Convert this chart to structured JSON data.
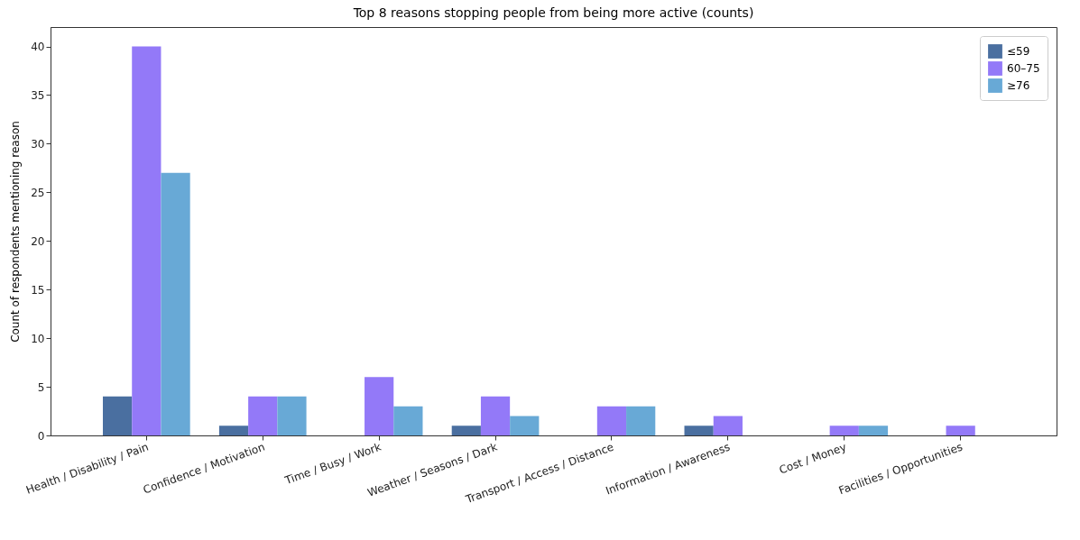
{
  "chart_data": {
    "type": "bar",
    "title": "Top 8 reasons stopping people from being more active (counts)",
    "ylabel": "Count of respondents mentioning reason",
    "categories": [
      "Health / Disability / Pain",
      "Confidence / Motivation",
      "Time / Busy / Work",
      "Weather / Seasons / Dark",
      "Transport / Access / Distance",
      "Information / Awareness",
      "Cost / Money",
      "Facilities / Opportunities"
    ],
    "series": [
      {
        "name": "≤59",
        "color": "#4a6fa0",
        "values": [
          4,
          1,
          0,
          1,
          0,
          1,
          0,
          0
        ]
      },
      {
        "name": "60–75",
        "color": "#9379f8",
        "values": [
          40,
          4,
          6,
          4,
          3,
          2,
          1,
          1
        ]
      },
      {
        "name": "≥76",
        "color": "#68a9d6",
        "values": [
          27,
          4,
          3,
          2,
          3,
          0,
          1,
          0
        ]
      }
    ],
    "ylim": [
      0,
      42
    ],
    "yticks": [
      0,
      5,
      10,
      15,
      20,
      25,
      30,
      35,
      40
    ],
    "grid": false,
    "legend": "top right"
  }
}
